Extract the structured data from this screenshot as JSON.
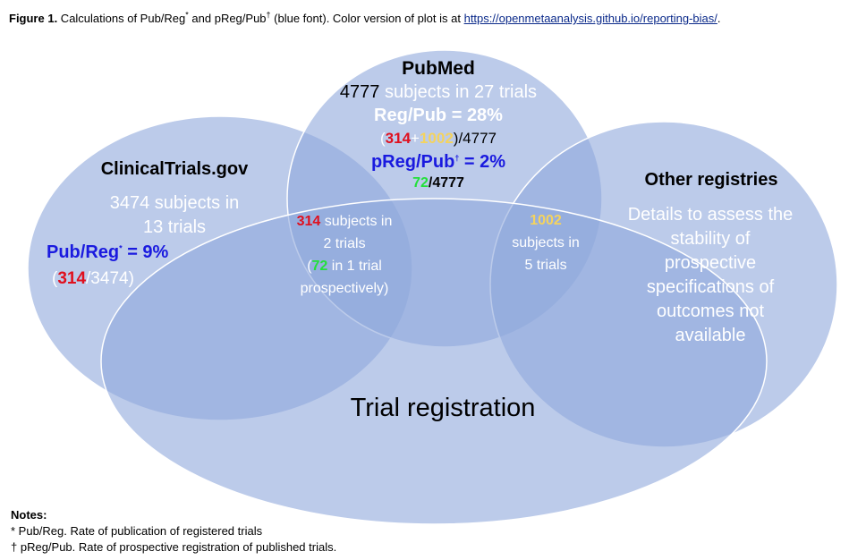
{
  "caption": {
    "fig": "Figure 1.",
    "text1": " Calculations of Pub/Reg",
    "sup1": "*",
    "text2": " and pReg/Pub",
    "sup2": "†",
    "text3": " (blue font). Color version of plot is at ",
    "link": "https://openmetaanalysis.github.io/reporting-bias/",
    "text4": "."
  },
  "colors": {
    "ellipse_fill": "#8fa9dc",
    "ellipse_stroke": "#ffffff",
    "blue_text": "#1a1adf",
    "red_text": "#e0101e",
    "yellow_text": "#f4d35e",
    "green_text": "#22e03a"
  },
  "pubmed": {
    "title": "PubMed",
    "subjects_num": "4777",
    "subjects_text": " subjects in 27 trials",
    "regpub": "Reg/Pub = 28%",
    "calc_open": "(",
    "calc_a": "314",
    "calc_plus": "+",
    "calc_b": "1002",
    "calc_rest": ")/4777",
    "preg": "pReg/Pub",
    "preg_sup": "†",
    "preg_val": " = 2%",
    "preg_calc_a": "72",
    "preg_calc_rest": "/4777"
  },
  "ctgov": {
    "title": "ClinicalTrials.gov",
    "line1": "3474 subjects in",
    "line2": "13 trials",
    "pubreg": "Pub/Reg",
    "pubreg_sup": "*",
    "pubreg_val": " = 9%",
    "calc_open": "(",
    "calc_a": "314",
    "calc_rest": "/3474)"
  },
  "overlap_left": {
    "num": "314",
    "line1": " subjects in",
    "line2": "2 trials",
    "line3_open": "(",
    "line3_num": "72",
    "line3_rest": " in 1 trial",
    "line4": "prospectively)"
  },
  "overlap_right": {
    "num": "1002",
    "line2": "subjects in",
    "line3": "5 trials"
  },
  "other": {
    "title": "Other registries",
    "lines": [
      "Details to assess the",
      "stability of",
      "prospective",
      "specifications of",
      "outcomes not",
      "available"
    ]
  },
  "trial_registration": "Trial registration",
  "notes": {
    "heading": "Notes:",
    "n1": "* Pub/Reg. Rate of publication of registered trials",
    "n2": "† pReg/Pub. Rate of prospective registration of published trials."
  }
}
